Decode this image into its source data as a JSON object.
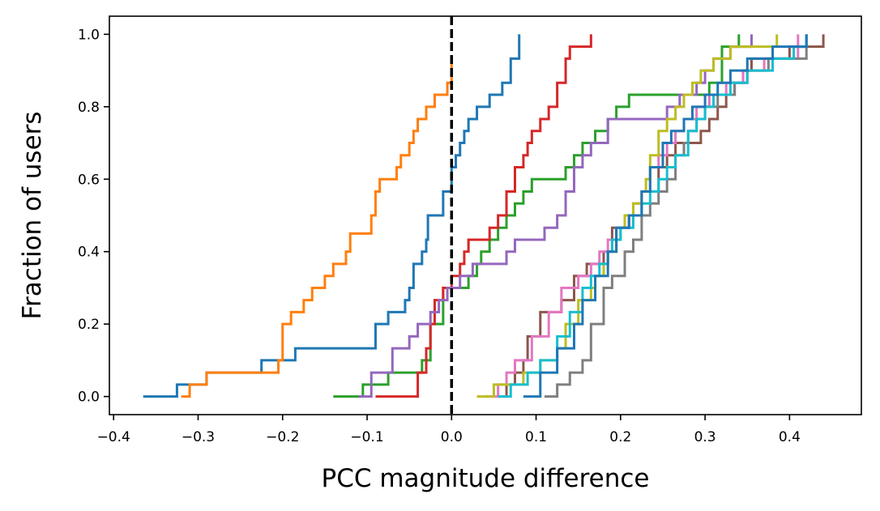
{
  "chart_data": {
    "type": "line",
    "title": "",
    "xlabel": "PCC magnitude difference",
    "ylabel": "Fraction of users",
    "xlim": [
      -0.405,
      0.485
    ],
    "ylim": [
      -0.05,
      1.05
    ],
    "xticks": [
      -0.4,
      -0.3,
      -0.2,
      -0.1,
      0.0,
      0.1,
      0.2,
      0.3,
      0.4
    ],
    "xtick_labels": [
      "−0.4",
      "−0.3",
      "−0.2",
      "−0.1",
      "0.0",
      "0.1",
      "0.2",
      "0.3",
      "0.4"
    ],
    "yticks": [
      0.0,
      0.2,
      0.4,
      0.6,
      0.8,
      1.0
    ],
    "ytick_labels": [
      "0.0",
      "0.2",
      "0.4",
      "0.6",
      "0.8",
      "1.0"
    ],
    "grid": false,
    "legend": "none",
    "reference_line": {
      "x": 0.0,
      "style": "dashed",
      "color": "#000000"
    },
    "series": [
      {
        "color": "#1f77b4",
        "x": [
          -0.365,
          -0.325,
          -0.29,
          -0.225,
          -0.185,
          -0.09,
          -0.075,
          -0.055,
          -0.05,
          -0.045,
          -0.035,
          -0.03,
          -0.028,
          -0.01,
          0.0,
          0.005,
          0.01,
          0.015,
          0.02,
          0.03,
          0.045,
          0.06,
          0.07,
          0.08
        ],
        "y": [
          0.0,
          0.033,
          0.066,
          0.1,
          0.133,
          0.2,
          0.233,
          0.266,
          0.3,
          0.366,
          0.4,
          0.433,
          0.5,
          0.566,
          0.633,
          0.666,
          0.7,
          0.733,
          0.766,
          0.8,
          0.833,
          0.866,
          0.933,
          1.0
        ]
      },
      {
        "color": "#ff7f0e",
        "x": [
          -0.32,
          -0.31,
          -0.29,
          -0.205,
          -0.2,
          -0.19,
          -0.175,
          -0.165,
          -0.15,
          -0.14,
          -0.125,
          -0.12,
          -0.095,
          -0.09,
          -0.085,
          -0.065,
          -0.06,
          -0.05,
          -0.045,
          -0.04,
          -0.03,
          -0.02,
          -0.005,
          0.0
        ],
        "y": [
          0.0,
          0.033,
          0.066,
          0.1,
          0.2,
          0.233,
          0.266,
          0.3,
          0.333,
          0.366,
          0.4,
          0.45,
          0.5,
          0.566,
          0.6,
          0.633,
          0.666,
          0.7,
          0.733,
          0.766,
          0.8,
          0.833,
          0.866,
          0.933
        ]
      },
      {
        "color": "#2ca02c",
        "x": [
          -0.14,
          -0.105,
          -0.075,
          -0.035,
          -0.025,
          -0.01,
          0.02,
          0.03,
          0.035,
          0.045,
          0.055,
          0.065,
          0.075,
          0.085,
          0.095,
          0.135,
          0.145,
          0.155,
          0.17,
          0.185,
          0.195,
          0.21,
          0.305,
          0.32,
          0.34
        ],
        "y": [
          0.0,
          0.033,
          0.066,
          0.1,
          0.2,
          0.3,
          0.333,
          0.366,
          0.4,
          0.433,
          0.466,
          0.5,
          0.533,
          0.566,
          0.6,
          0.633,
          0.666,
          0.7,
          0.733,
          0.766,
          0.8,
          0.833,
          0.866,
          0.966,
          1.0
        ]
      },
      {
        "color": "#d62728",
        "x": [
          -0.09,
          -0.04,
          -0.03,
          -0.025,
          -0.02,
          -0.01,
          0.0,
          0.01,
          0.015,
          0.02,
          0.045,
          0.055,
          0.065,
          0.075,
          0.085,
          0.09,
          0.095,
          0.105,
          0.115,
          0.125,
          0.135,
          0.14,
          0.165
        ],
        "y": [
          0.0,
          0.066,
          0.133,
          0.2,
          0.266,
          0.3,
          0.333,
          0.366,
          0.4,
          0.433,
          0.466,
          0.5,
          0.566,
          0.633,
          0.666,
          0.7,
          0.733,
          0.766,
          0.8,
          0.866,
          0.933,
          0.966,
          1.0
        ]
      },
      {
        "color": "#9467bd",
        "x": [
          -0.11,
          -0.095,
          -0.07,
          -0.05,
          -0.04,
          -0.025,
          -0.015,
          -0.005,
          0.01,
          0.025,
          0.065,
          0.075,
          0.11,
          0.125,
          0.135,
          0.145,
          0.155,
          0.165,
          0.185,
          0.255,
          0.27,
          0.29,
          0.3,
          0.31,
          0.33,
          0.355
        ],
        "y": [
          0.0,
          0.066,
          0.133,
          0.166,
          0.2,
          0.233,
          0.266,
          0.3,
          0.333,
          0.366,
          0.4,
          0.433,
          0.466,
          0.5,
          0.566,
          0.633,
          0.666,
          0.7,
          0.766,
          0.8,
          0.833,
          0.866,
          0.9,
          0.933,
          0.966,
          1.0
        ]
      },
      {
        "color": "#8c564b",
        "x": [
          0.055,
          0.065,
          0.075,
          0.085,
          0.09,
          0.105,
          0.13,
          0.145,
          0.16,
          0.18,
          0.19,
          0.21,
          0.225,
          0.245,
          0.255,
          0.265,
          0.295,
          0.305,
          0.315,
          0.325,
          0.335,
          0.345,
          0.355,
          0.4,
          0.44
        ],
        "y": [
          0.0,
          0.033,
          0.066,
          0.1,
          0.166,
          0.233,
          0.266,
          0.333,
          0.366,
          0.4,
          0.466,
          0.5,
          0.566,
          0.633,
          0.666,
          0.7,
          0.733,
          0.766,
          0.8,
          0.833,
          0.866,
          0.9,
          0.933,
          0.966,
          1.0
        ]
      },
      {
        "color": "#e377c2",
        "x": [
          0.04,
          0.055,
          0.065,
          0.075,
          0.095,
          0.115,
          0.13,
          0.15,
          0.165,
          0.175,
          0.185,
          0.195,
          0.21,
          0.215,
          0.225,
          0.235,
          0.245,
          0.255,
          0.265,
          0.275,
          0.29,
          0.305,
          0.325,
          0.345,
          0.37,
          0.41
        ],
        "y": [
          0.0,
          0.033,
          0.066,
          0.1,
          0.166,
          0.233,
          0.3,
          0.333,
          0.366,
          0.4,
          0.433,
          0.466,
          0.5,
          0.533,
          0.566,
          0.633,
          0.666,
          0.7,
          0.733,
          0.766,
          0.8,
          0.833,
          0.866,
          0.9,
          0.933,
          1.0
        ]
      },
      {
        "color": "#7f7f7f",
        "x": [
          0.11,
          0.125,
          0.14,
          0.155,
          0.165,
          0.18,
          0.19,
          0.205,
          0.215,
          0.225,
          0.235,
          0.245,
          0.255,
          0.265,
          0.275,
          0.28,
          0.29,
          0.3,
          0.315,
          0.335,
          0.35,
          0.375,
          0.42
        ],
        "y": [
          0.0,
          0.033,
          0.066,
          0.1,
          0.2,
          0.3,
          0.333,
          0.4,
          0.433,
          0.5,
          0.533,
          0.566,
          0.6,
          0.666,
          0.7,
          0.733,
          0.766,
          0.8,
          0.833,
          0.866,
          0.9,
          0.933,
          1.0
        ]
      },
      {
        "color": "#bcbd22",
        "x": [
          0.03,
          0.05,
          0.085,
          0.105,
          0.125,
          0.135,
          0.15,
          0.165,
          0.17,
          0.18,
          0.185,
          0.195,
          0.2,
          0.205,
          0.215,
          0.225,
          0.23,
          0.235,
          0.245,
          0.255,
          0.265,
          0.275,
          0.285,
          0.295,
          0.31,
          0.33,
          0.36,
          0.385
        ],
        "y": [
          0.0,
          0.033,
          0.066,
          0.1,
          0.133,
          0.2,
          0.266,
          0.3,
          0.333,
          0.366,
          0.4,
          0.433,
          0.466,
          0.5,
          0.533,
          0.566,
          0.6,
          0.666,
          0.733,
          0.766,
          0.8,
          0.833,
          0.866,
          0.9,
          0.933,
          0.966,
          0.966,
          1.0
        ]
      },
      {
        "color": "#17becf",
        "x": [
          0.055,
          0.07,
          0.09,
          0.105,
          0.125,
          0.14,
          0.155,
          0.165,
          0.175,
          0.185,
          0.19,
          0.2,
          0.215,
          0.225,
          0.235,
          0.245,
          0.255,
          0.265,
          0.28,
          0.29,
          0.3,
          0.31,
          0.33,
          0.35,
          0.38,
          0.405,
          0.42
        ],
        "y": [
          0.0,
          0.033,
          0.066,
          0.1,
          0.166,
          0.233,
          0.3,
          0.333,
          0.366,
          0.4,
          0.433,
          0.466,
          0.5,
          0.533,
          0.566,
          0.6,
          0.633,
          0.666,
          0.733,
          0.766,
          0.8,
          0.833,
          0.866,
          0.9,
          0.933,
          0.966,
          1.0
        ]
      },
      {
        "color": "#1f77b4",
        "x": [
          0.085,
          0.105,
          0.125,
          0.145,
          0.155,
          0.17,
          0.185,
          0.195,
          0.21,
          0.225,
          0.235,
          0.25,
          0.26,
          0.275,
          0.285,
          0.3,
          0.315,
          0.33,
          0.35,
          0.38,
          0.41,
          0.42
        ],
        "y": [
          0.0,
          0.066,
          0.133,
          0.2,
          0.266,
          0.333,
          0.4,
          0.466,
          0.5,
          0.566,
          0.633,
          0.7,
          0.733,
          0.766,
          0.8,
          0.833,
          0.866,
          0.9,
          0.933,
          0.966,
          0.966,
          1.0
        ]
      }
    ]
  }
}
